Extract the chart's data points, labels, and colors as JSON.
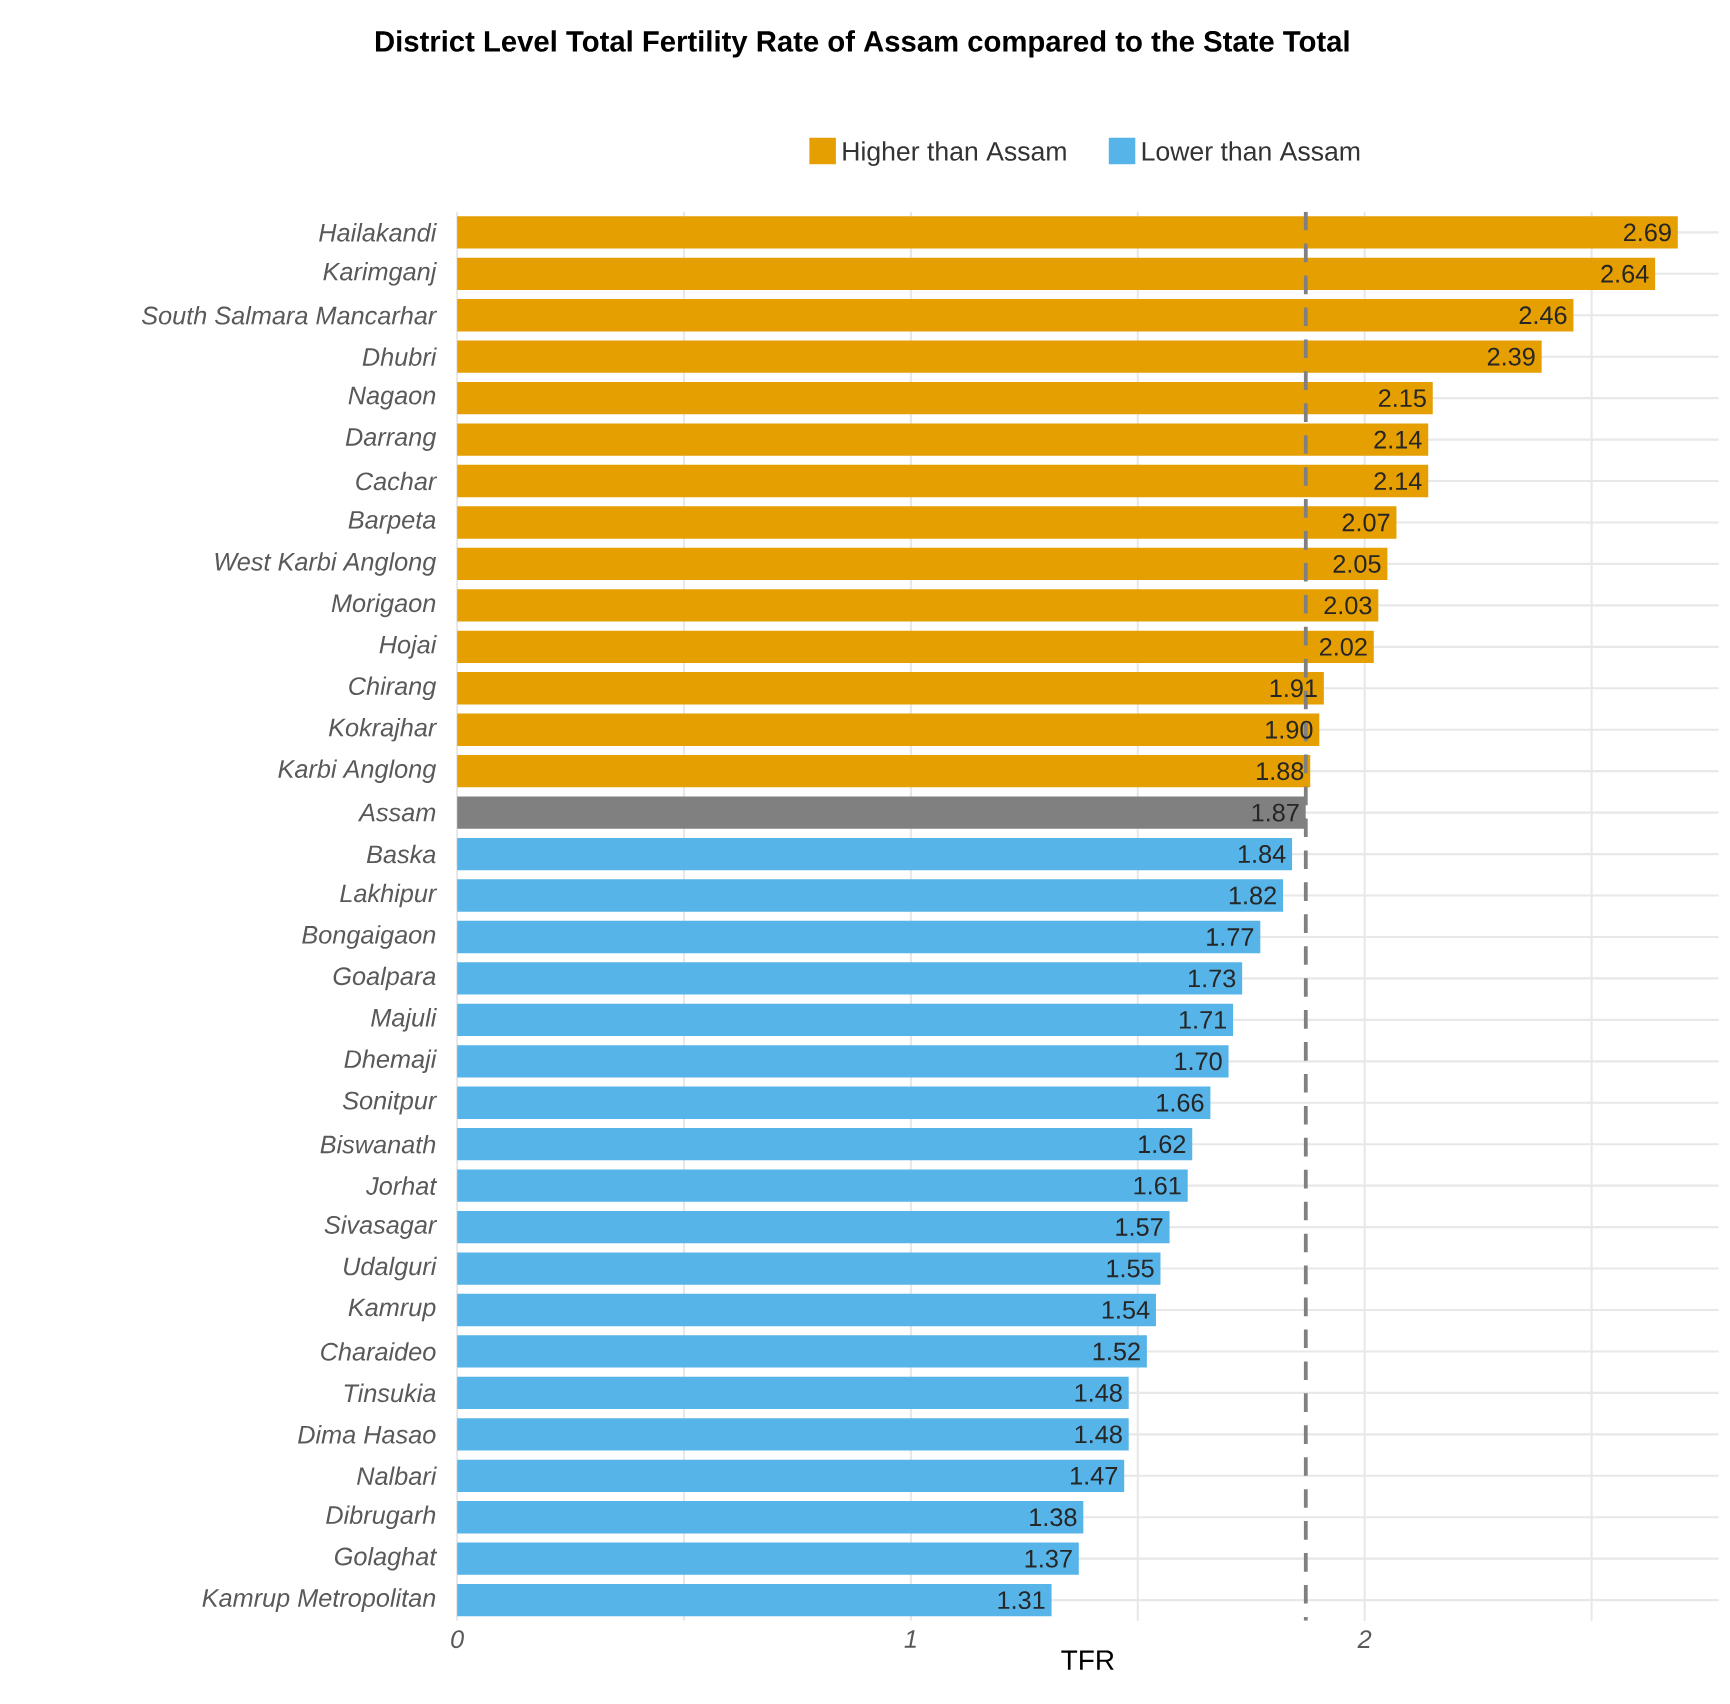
{
  "chart_data": {
    "type": "bar",
    "orientation": "horizontal",
    "title": "District Level Total Fertility Rate of Assam compared to the State Total",
    "xlabel": "TFR",
    "categories": [
      "Hailakandi",
      "Karimganj",
      "South Salmara Mancarhar",
      "Dhubri",
      "Nagaon",
      "Darrang",
      "Cachar",
      "Barpeta",
      "West Karbi Anglong",
      "Morigaon",
      "Hojai",
      "Chirang",
      "Kokrajhar",
      "Karbi Anglong",
      "Assam",
      "Baska",
      "Lakhipur",
      "Bongaigaon",
      "Goalpara",
      "Majuli",
      "Dhemaji",
      "Sonitpur",
      "Biswanath",
      "Jorhat",
      "Sivasagar",
      "Udalguri",
      "Kamrup",
      "Charaideo",
      "Tinsukia",
      "Dima Hasao",
      "Nalbari",
      "Dibrugarh",
      "Golaghat",
      "Kamrup Metropolitan"
    ],
    "series": [
      {
        "name": "Higher than Assam",
        "color": "#e69f00",
        "values": [
          2.69,
          2.64,
          2.46,
          2.39,
          2.15,
          2.14,
          2.14,
          2.07,
          2.05,
          2.03,
          2.02,
          1.91,
          1.9,
          1.88,
          null,
          null,
          null,
          null,
          null,
          null,
          null,
          null,
          null,
          null,
          null,
          null,
          null,
          null,
          null,
          null,
          null,
          null,
          null,
          null
        ],
        "value_labels": [
          "2.69",
          "2.64",
          "2.46",
          "2.39",
          "2.15",
          "2.14",
          "2.14",
          "2.07",
          "2.05",
          "2.03",
          "2.02",
          "1.91",
          "1.90",
          "1.88",
          null,
          null,
          null,
          null,
          null,
          null,
          null,
          null,
          null,
          null,
          null,
          null,
          null,
          null,
          null,
          null,
          null,
          null,
          null,
          null
        ]
      },
      {
        "color": "#808080",
        "values": [
          null,
          null,
          null,
          null,
          null,
          null,
          null,
          null,
          null,
          null,
          null,
          null,
          null,
          null,
          1.87,
          null,
          null,
          null,
          null,
          null,
          null,
          null,
          null,
          null,
          null,
          null,
          null,
          null,
          null,
          null,
          null,
          null,
          null,
          null
        ],
        "value_labels": [
          null,
          null,
          null,
          null,
          null,
          null,
          null,
          null,
          null,
          null,
          null,
          null,
          null,
          null,
          "1.87",
          null,
          null,
          null,
          null,
          null,
          null,
          null,
          null,
          null,
          null,
          null,
          null,
          null,
          null,
          null,
          null,
          null,
          null,
          null
        ]
      },
      {
        "name": "Lower than Assam",
        "color": "#56b4e9",
        "values": [
          null,
          null,
          null,
          null,
          null,
          null,
          null,
          null,
          null,
          null,
          null,
          null,
          null,
          null,
          null,
          1.84,
          1.82,
          1.77,
          1.73,
          1.71,
          1.7,
          1.66,
          1.62,
          1.61,
          1.57,
          1.55,
          1.54,
          1.52,
          1.48,
          1.48,
          1.47,
          1.38,
          1.37,
          1.31
        ],
        "value_labels": [
          null,
          null,
          null,
          null,
          null,
          null,
          null,
          null,
          null,
          null,
          null,
          null,
          null,
          null,
          null,
          "1.84",
          "1.82",
          "1.77",
          "1.73",
          "1.71",
          "1.70",
          "1.66",
          "1.62",
          "1.61",
          "1.57",
          "1.55",
          "1.54",
          "1.52",
          "1.48",
          "1.48",
          "1.47",
          "1.38",
          "1.37",
          "1.31"
        ]
      }
    ],
    "xlim": [
      0,
      2.78
    ],
    "xticks": [
      0,
      {
        "value": 0.5,
        "label": null
      },
      1,
      {
        "value": 1.5,
        "label": null
      },
      2,
      {
        "value": 2.5,
        "label": null
      }
    ],
    "ref_lines": [
      {
        "axis": "x",
        "value": 1.87,
        "color": "#808080",
        "line_style": "dashed"
      }
    ],
    "grid": true,
    "legend": "top"
  }
}
